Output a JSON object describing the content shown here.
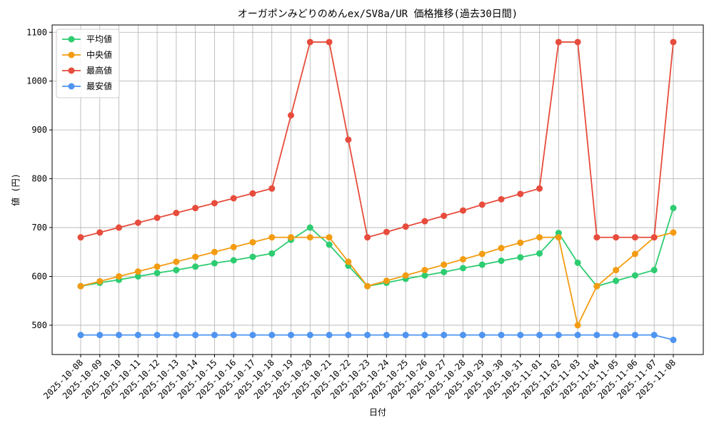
{
  "chart_data": {
    "type": "line",
    "title": "オーガポンみどりのめんex/SV8a/UR 価格推移(過去30日間)",
    "x_label": "日付",
    "y_label": "値 (円)",
    "categories": [
      "2025-10-08",
      "2025-10-09",
      "2025-10-10",
      "2025-10-11",
      "2025-10-12",
      "2025-10-13",
      "2025-10-14",
      "2025-10-15",
      "2025-10-16",
      "2025-10-17",
      "2025-10-18",
      "2025-10-19",
      "2025-10-20",
      "2025-10-21",
      "2025-10-22",
      "2025-10-23",
      "2025-10-24",
      "2025-10-25",
      "2025-10-26",
      "2025-10-27",
      "2025-10-28",
      "2025-10-29",
      "2025-10-30",
      "2025-10-31",
      "2025-11-01",
      "2025-11-02",
      "2025-11-03",
      "2025-11-04",
      "2025-11-05",
      "2025-11-06",
      "2025-11-07",
      "2025-11-08"
    ],
    "series": [
      {
        "name": "平均値",
        "color": "#2ecc71",
        "values": [
          580,
          587,
          593,
          600,
          607,
          613,
          620,
          627,
          633,
          640,
          647,
          675,
          700,
          665,
          622,
          580,
          587,
          595,
          602,
          609,
          617,
          624,
          632,
          639,
          647,
          689,
          628,
          580,
          591,
          602,
          613,
          740
        ]
      },
      {
        "name": "中央値",
        "color": "#f39c12",
        "values": [
          580,
          590,
          600,
          610,
          620,
          630,
          640,
          650,
          660,
          670,
          680,
          680,
          680,
          680,
          630,
          580,
          591,
          602,
          613,
          624,
          635,
          646,
          658,
          669,
          680,
          680,
          500,
          580,
          613,
          646,
          680,
          690
        ]
      },
      {
        "name": "最高値",
        "color": "#e74c3c",
        "values": [
          680,
          690,
          700,
          710,
          720,
          730,
          740,
          750,
          760,
          770,
          780,
          930,
          1080,
          1080,
          880,
          680,
          691,
          702,
          713,
          724,
          735,
          747,
          758,
          769,
          780,
          1080,
          1080,
          680,
          680,
          680,
          680,
          1080
        ]
      },
      {
        "name": "最安値",
        "color": "#4e94f0",
        "values": [
          480,
          480,
          480,
          480,
          480,
          480,
          480,
          480,
          480,
          480,
          480,
          480,
          480,
          480,
          480,
          480,
          480,
          480,
          480,
          480,
          480,
          480,
          480,
          480,
          480,
          480,
          480,
          480,
          480,
          480,
          480,
          470
        ]
      }
    ],
    "ylim": [
      440,
      1115
    ],
    "yticks": [
      500,
      600,
      700,
      800,
      900,
      1000,
      1100
    ],
    "grid": true,
    "legend": "upper-left"
  }
}
